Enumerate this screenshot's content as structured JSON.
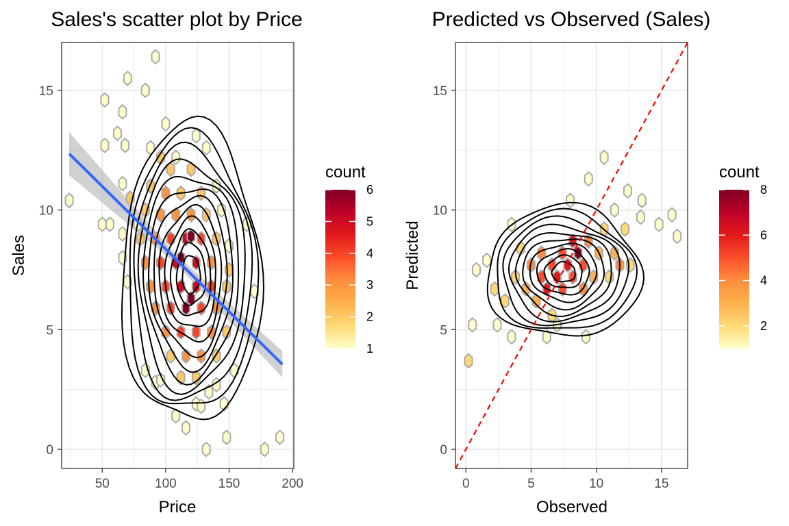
{
  "chart_data": [
    {
      "type": "scatter",
      "title": "Sales's scatter plot by Price",
      "xlabel": "Price",
      "ylabel": "Sales",
      "xlim": [
        18,
        201
      ],
      "ylim": [
        -0.8,
        17
      ],
      "xticks": [
        50,
        100,
        150,
        200
      ],
      "yticks": [
        0,
        5,
        10,
        15
      ],
      "grid": true,
      "legend": {
        "title": "count",
        "position": "right",
        "ticks": [
          1,
          2,
          3,
          4,
          5,
          6
        ],
        "range": [
          1,
          6
        ],
        "colors": [
          "#ffffcc",
          "#fed976",
          "#feb24c",
          "#fd8d3c",
          "#fc4e2a",
          "#e31a1c",
          "#bd0026",
          "#800026"
        ]
      },
      "hexbins": [
        {
          "x": 24,
          "y": 10.4,
          "count": 1
        },
        {
          "x": 52,
          "y": 14.6,
          "count": 1
        },
        {
          "x": 52,
          "y": 12.7,
          "count": 1
        },
        {
          "x": 50,
          "y": 9.4,
          "count": 1
        },
        {
          "x": 56,
          "y": 9.4,
          "count": 1
        },
        {
          "x": 62,
          "y": 13.2,
          "count": 1
        },
        {
          "x": 66,
          "y": 14.1,
          "count": 1
        },
        {
          "x": 70,
          "y": 15.5,
          "count": 1
        },
        {
          "x": 68,
          "y": 12.7,
          "count": 1
        },
        {
          "x": 66,
          "y": 11.1,
          "count": 1
        },
        {
          "x": 66,
          "y": 9.0,
          "count": 1
        },
        {
          "x": 66,
          "y": 8.0,
          "count": 1
        },
        {
          "x": 70,
          "y": 7.0,
          "count": 1
        },
        {
          "x": 72,
          "y": 10.5,
          "count": 2
        },
        {
          "x": 78,
          "y": 9.4,
          "count": 1
        },
        {
          "x": 84,
          "y": 15.0,
          "count": 1
        },
        {
          "x": 88,
          "y": 12.6,
          "count": 1
        },
        {
          "x": 92,
          "y": 16.4,
          "count": 1
        },
        {
          "x": 84,
          "y": 3.3,
          "count": 1
        },
        {
          "x": 92,
          "y": 2.8,
          "count": 1
        },
        {
          "x": 96,
          "y": 2.9,
          "count": 1
        },
        {
          "x": 108,
          "y": 1.4,
          "count": 1
        },
        {
          "x": 116,
          "y": 0.9,
          "count": 1
        },
        {
          "x": 124,
          "y": 1.9,
          "count": 1
        },
        {
          "x": 128,
          "y": 1.8,
          "count": 1
        },
        {
          "x": 134,
          "y": 2.4,
          "count": 1
        },
        {
          "x": 140,
          "y": 2.7,
          "count": 1
        },
        {
          "x": 146,
          "y": 1.9,
          "count": 1
        },
        {
          "x": 148,
          "y": 0.5,
          "count": 1
        },
        {
          "x": 178,
          "y": 0.0,
          "count": 1
        },
        {
          "x": 190,
          "y": 0.5,
          "count": 1
        },
        {
          "x": 132,
          "y": 0.0,
          "count": 1
        },
        {
          "x": 154,
          "y": 3.3,
          "count": 1
        },
        {
          "x": 164,
          "y": 9.4,
          "count": 1
        },
        {
          "x": 170,
          "y": 6.6,
          "count": 1
        },
        {
          "x": 150,
          "y": 8.5,
          "count": 1
        },
        {
          "x": 150,
          "y": 7.5,
          "count": 2
        },
        {
          "x": 144,
          "y": 10.0,
          "count": 1
        },
        {
          "x": 140,
          "y": 11.0,
          "count": 1
        },
        {
          "x": 124,
          "y": 13.1,
          "count": 1
        },
        {
          "x": 132,
          "y": 12.6,
          "count": 1
        },
        {
          "x": 100,
          "y": 13.6,
          "count": 1
        },
        {
          "x": 108,
          "y": 12.2,
          "count": 1
        },
        {
          "x": 96,
          "y": 12.2,
          "count": 2
        },
        {
          "x": 104,
          "y": 11.7,
          "count": 2
        },
        {
          "x": 120,
          "y": 11.7,
          "count": 2
        },
        {
          "x": 88,
          "y": 11.0,
          "count": 2
        },
        {
          "x": 100,
          "y": 10.7,
          "count": 3
        },
        {
          "x": 112,
          "y": 10.7,
          "count": 2
        },
        {
          "x": 128,
          "y": 10.7,
          "count": 2
        },
        {
          "x": 84,
          "y": 10.0,
          "count": 2
        },
        {
          "x": 96,
          "y": 9.8,
          "count": 3
        },
        {
          "x": 108,
          "y": 9.8,
          "count": 3
        },
        {
          "x": 120,
          "y": 9.8,
          "count": 3
        },
        {
          "x": 132,
          "y": 9.8,
          "count": 2
        },
        {
          "x": 80,
          "y": 8.8,
          "count": 2
        },
        {
          "x": 92,
          "y": 8.8,
          "count": 3
        },
        {
          "x": 104,
          "y": 8.8,
          "count": 4
        },
        {
          "x": 116,
          "y": 8.8,
          "count": 5
        },
        {
          "x": 120,
          "y": 8.9,
          "count": 6
        },
        {
          "x": 128,
          "y": 8.8,
          "count": 4
        },
        {
          "x": 140,
          "y": 8.8,
          "count": 2
        },
        {
          "x": 84,
          "y": 7.8,
          "count": 3
        },
        {
          "x": 96,
          "y": 7.8,
          "count": 4
        },
        {
          "x": 108,
          "y": 7.8,
          "count": 5
        },
        {
          "x": 112,
          "y": 8.0,
          "count": 6
        },
        {
          "x": 124,
          "y": 7.8,
          "count": 5
        },
        {
          "x": 136,
          "y": 7.8,
          "count": 3
        },
        {
          "x": 88,
          "y": 6.8,
          "count": 3
        },
        {
          "x": 100,
          "y": 6.8,
          "count": 4
        },
        {
          "x": 112,
          "y": 6.8,
          "count": 5
        },
        {
          "x": 124,
          "y": 6.8,
          "count": 5
        },
        {
          "x": 136,
          "y": 6.8,
          "count": 4
        },
        {
          "x": 148,
          "y": 6.8,
          "count": 2
        },
        {
          "x": 92,
          "y": 5.9,
          "count": 3
        },
        {
          "x": 104,
          "y": 5.9,
          "count": 4
        },
        {
          "x": 116,
          "y": 5.9,
          "count": 6
        },
        {
          "x": 120,
          "y": 6.3,
          "count": 6
        },
        {
          "x": 128,
          "y": 5.9,
          "count": 4
        },
        {
          "x": 140,
          "y": 5.9,
          "count": 3
        },
        {
          "x": 100,
          "y": 4.9,
          "count": 3
        },
        {
          "x": 112,
          "y": 4.9,
          "count": 4
        },
        {
          "x": 124,
          "y": 4.9,
          "count": 4
        },
        {
          "x": 136,
          "y": 4.9,
          "count": 3
        },
        {
          "x": 148,
          "y": 4.9,
          "count": 2
        },
        {
          "x": 104,
          "y": 3.9,
          "count": 2
        },
        {
          "x": 116,
          "y": 3.9,
          "count": 3
        },
        {
          "x": 128,
          "y": 3.9,
          "count": 3
        },
        {
          "x": 140,
          "y": 3.9,
          "count": 2
        },
        {
          "x": 112,
          "y": 3.0,
          "count": 2
        },
        {
          "x": 124,
          "y": 3.0,
          "count": 2
        }
      ],
      "density_contours": {
        "center": [
          120,
          7.3
        ],
        "levels": 12,
        "outer_x_range": [
          63,
          173
        ],
        "outer_y_range": [
          1.4,
          13.9
        ]
      },
      "regression_line": {
        "x": [
          24,
          192
        ],
        "y": [
          12.35,
          3.55
        ],
        "ci_halfwidth": [
          0.9,
          0.2,
          0.55
        ],
        "color": "#3366ff"
      }
    },
    {
      "type": "scatter",
      "title": "Predicted vs Observed (Sales)",
      "xlabel": "Observed",
      "ylabel": "Predicted",
      "xlim": [
        -0.8,
        17
      ],
      "ylim": [
        -0.8,
        17
      ],
      "xticks": [
        0,
        5,
        10,
        15
      ],
      "yticks": [
        0,
        5,
        10,
        15
      ],
      "grid": true,
      "legend": {
        "title": "count",
        "position": "right",
        "ticks": [
          2,
          4,
          6,
          8
        ],
        "range": [
          1,
          8
        ],
        "colors": [
          "#ffffcc",
          "#fed976",
          "#feb24c",
          "#fd8d3c",
          "#fc4e2a",
          "#e31a1c",
          "#bd0026",
          "#800026"
        ]
      },
      "hexbins": [
        {
          "x": 0.2,
          "y": 3.7,
          "count": 2
        },
        {
          "x": 0.5,
          "y": 5.2,
          "count": 1
        },
        {
          "x": 0.8,
          "y": 7.5,
          "count": 1
        },
        {
          "x": 1.6,
          "y": 7.9,
          "count": 1
        },
        {
          "x": 2.4,
          "y": 5.2,
          "count": 1
        },
        {
          "x": 3.5,
          "y": 9.4,
          "count": 1
        },
        {
          "x": 3.5,
          "y": 4.7,
          "count": 1
        },
        {
          "x": 2.2,
          "y": 6.7,
          "count": 2
        },
        {
          "x": 3.0,
          "y": 6.2,
          "count": 2
        },
        {
          "x": 3.8,
          "y": 7.2,
          "count": 2
        },
        {
          "x": 4.2,
          "y": 8.4,
          "count": 2
        },
        {
          "x": 4.6,
          "y": 6.7,
          "count": 3
        },
        {
          "x": 5.0,
          "y": 7.7,
          "count": 4
        },
        {
          "x": 5.4,
          "y": 6.2,
          "count": 3
        },
        {
          "x": 5.8,
          "y": 8.2,
          "count": 4
        },
        {
          "x": 5.8,
          "y": 7.2,
          "count": 5
        },
        {
          "x": 6.2,
          "y": 6.7,
          "count": 6
        },
        {
          "x": 6.6,
          "y": 7.7,
          "count": 5
        },
        {
          "x": 7.0,
          "y": 7.2,
          "count": 6
        },
        {
          "x": 7.4,
          "y": 8.2,
          "count": 5
        },
        {
          "x": 7.4,
          "y": 6.7,
          "count": 5
        },
        {
          "x": 7.8,
          "y": 7.7,
          "count": 6
        },
        {
          "x": 8.2,
          "y": 8.7,
          "count": 6
        },
        {
          "x": 8.2,
          "y": 7.2,
          "count": 5
        },
        {
          "x": 8.6,
          "y": 8.2,
          "count": 8
        },
        {
          "x": 9.0,
          "y": 7.7,
          "count": 5
        },
        {
          "x": 9.0,
          "y": 6.7,
          "count": 4
        },
        {
          "x": 9.4,
          "y": 8.7,
          "count": 4
        },
        {
          "x": 9.8,
          "y": 7.2,
          "count": 3
        },
        {
          "x": 10.2,
          "y": 8.2,
          "count": 3
        },
        {
          "x": 10.6,
          "y": 9.2,
          "count": 2
        },
        {
          "x": 11.0,
          "y": 7.2,
          "count": 2
        },
        {
          "x": 11.4,
          "y": 8.2,
          "count": 3
        },
        {
          "x": 11.8,
          "y": 7.7,
          "count": 4
        },
        {
          "x": 12.2,
          "y": 9.2,
          "count": 2
        },
        {
          "x": 12.6,
          "y": 7.7,
          "count": 2
        },
        {
          "x": 8.0,
          "y": 10.4,
          "count": 1
        },
        {
          "x": 9.4,
          "y": 11.3,
          "count": 1
        },
        {
          "x": 10.6,
          "y": 12.2,
          "count": 1
        },
        {
          "x": 12.4,
          "y": 10.8,
          "count": 1
        },
        {
          "x": 13.5,
          "y": 10.4,
          "count": 1
        },
        {
          "x": 13.4,
          "y": 9.7,
          "count": 1
        },
        {
          "x": 14.8,
          "y": 9.4,
          "count": 1
        },
        {
          "x": 15.8,
          "y": 9.8,
          "count": 1
        },
        {
          "x": 16.2,
          "y": 8.9,
          "count": 1
        },
        {
          "x": 6.2,
          "y": 4.7,
          "count": 1
        },
        {
          "x": 7.0,
          "y": 5.2,
          "count": 1
        },
        {
          "x": 9.2,
          "y": 4.7,
          "count": 1
        },
        {
          "x": 6.6,
          "y": 5.6,
          "count": 2
        },
        {
          "x": 11.4,
          "y": 10.0,
          "count": 1
        }
      ],
      "density_contours": {
        "center": [
          7.5,
          7.4
        ],
        "levels": 10,
        "outer_x_range": [
          1.8,
          13.6
        ],
        "outer_y_range": [
          4.7,
          10.2
        ]
      },
      "reference_line": {
        "slope": 1,
        "intercept": 0,
        "color": "#ff0000",
        "style": "dashed"
      }
    }
  ]
}
